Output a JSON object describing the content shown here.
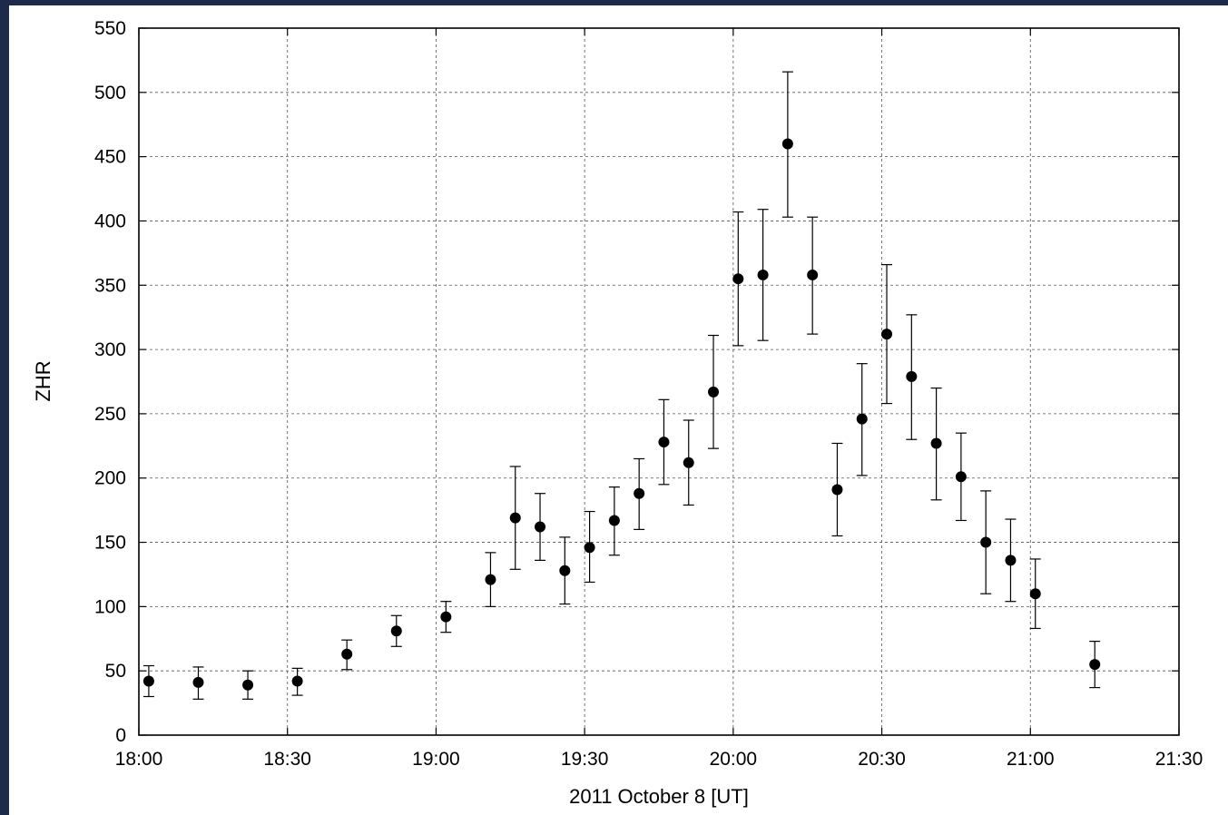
{
  "chart_data": {
    "type": "scatter",
    "title": "",
    "xlabel": "2011 October 8 [UT]",
    "ylabel": "ZHR",
    "xlim": [
      "18:00",
      "21:30"
    ],
    "ylim": [
      0,
      550
    ],
    "x_ticks": [
      "18:00",
      "18:30",
      "19:00",
      "19:30",
      "20:00",
      "20:30",
      "21:00",
      "21:30"
    ],
    "y_ticks": [
      0,
      50,
      100,
      150,
      200,
      250,
      300,
      350,
      400,
      450,
      500,
      550
    ],
    "grid": true,
    "series": [
      {
        "points": [
          {
            "x": "18:02",
            "y": 42,
            "err_low": 30,
            "err_high": 54
          },
          {
            "x": "18:12",
            "y": 41,
            "err_low": 28,
            "err_high": 53
          },
          {
            "x": "18:22",
            "y": 39,
            "err_low": 28,
            "err_high": 50
          },
          {
            "x": "18:32",
            "y": 42,
            "err_low": 31,
            "err_high": 52
          },
          {
            "x": "18:42",
            "y": 63,
            "err_low": 51,
            "err_high": 74
          },
          {
            "x": "18:52",
            "y": 81,
            "err_low": 69,
            "err_high": 93
          },
          {
            "x": "19:02",
            "y": 92,
            "err_low": 80,
            "err_high": 104
          },
          {
            "x": "19:11",
            "y": 121,
            "err_low": 100,
            "err_high": 142
          },
          {
            "x": "19:16",
            "y": 169,
            "err_low": 129,
            "err_high": 209
          },
          {
            "x": "19:21",
            "y": 162,
            "err_low": 136,
            "err_high": 188
          },
          {
            "x": "19:26",
            "y": 128,
            "err_low": 102,
            "err_high": 154
          },
          {
            "x": "19:31",
            "y": 146,
            "err_low": 119,
            "err_high": 174
          },
          {
            "x": "19:36",
            "y": 167,
            "err_low": 140,
            "err_high": 193
          },
          {
            "x": "19:41",
            "y": 188,
            "err_low": 160,
            "err_high": 215
          },
          {
            "x": "19:46",
            "y": 228,
            "err_low": 195,
            "err_high": 261
          },
          {
            "x": "19:51",
            "y": 212,
            "err_low": 179,
            "err_high": 245
          },
          {
            "x": "19:56",
            "y": 267,
            "err_low": 223,
            "err_high": 311
          },
          {
            "x": "20:01",
            "y": 355,
            "err_low": 303,
            "err_high": 407
          },
          {
            "x": "20:06",
            "y": 358,
            "err_low": 307,
            "err_high": 409
          },
          {
            "x": "20:11",
            "y": 460,
            "err_low": 403,
            "err_high": 516
          },
          {
            "x": "20:16",
            "y": 358,
            "err_low": 312,
            "err_high": 403
          },
          {
            "x": "20:21",
            "y": 191,
            "err_low": 155,
            "err_high": 227
          },
          {
            "x": "20:26",
            "y": 246,
            "err_low": 202,
            "err_high": 289
          },
          {
            "x": "20:31",
            "y": 312,
            "err_low": 258,
            "err_high": 366
          },
          {
            "x": "20:36",
            "y": 279,
            "err_low": 230,
            "err_high": 327
          },
          {
            "x": "20:41",
            "y": 227,
            "err_low": 183,
            "err_high": 270
          },
          {
            "x": "20:46",
            "y": 201,
            "err_low": 167,
            "err_high": 235
          },
          {
            "x": "20:51",
            "y": 150,
            "err_low": 110,
            "err_high": 190
          },
          {
            "x": "20:56",
            "y": 136,
            "err_low": 104,
            "err_high": 168
          },
          {
            "x": "21:01",
            "y": 110,
            "err_low": 83,
            "err_high": 137
          },
          {
            "x": "21:13",
            "y": 55,
            "err_low": 37,
            "err_high": 73
          }
        ]
      }
    ]
  }
}
